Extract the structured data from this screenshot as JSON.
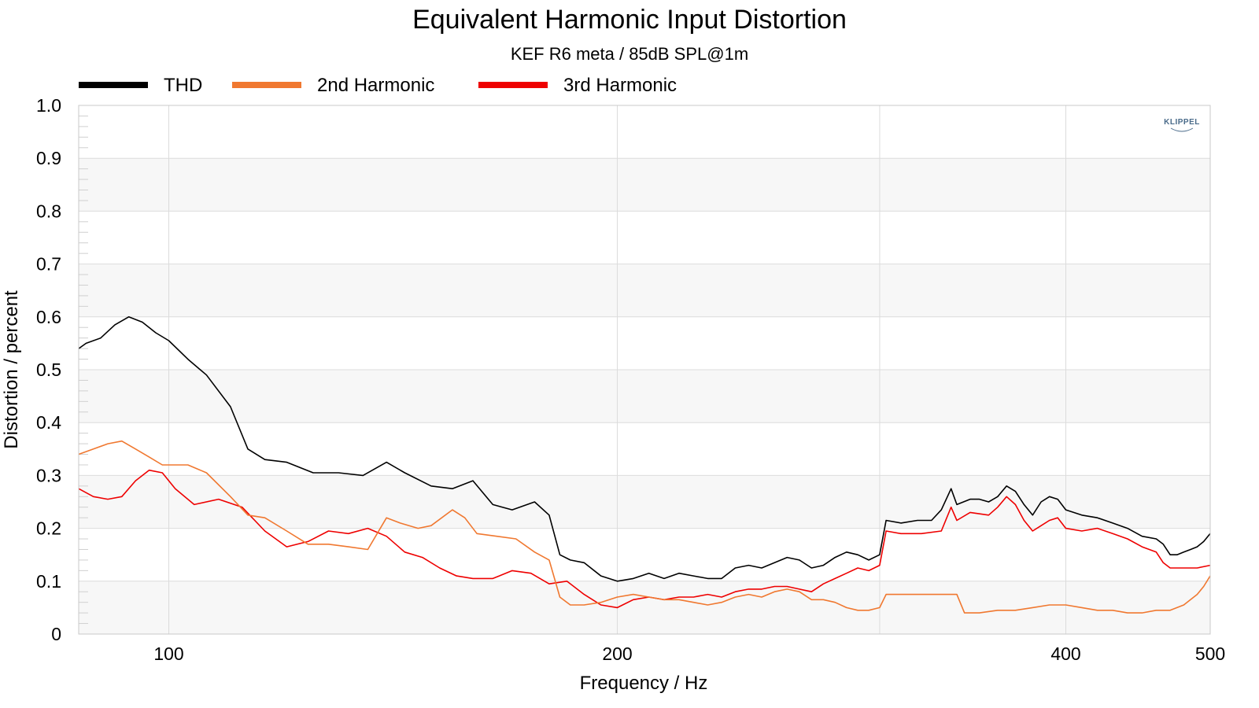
{
  "chart_data": {
    "type": "line",
    "title": "Equivalent Harmonic Input Distortion",
    "subtitle": "KEF R6 meta / 85dB SPL@1m",
    "xlabel": "Frequency / Hz",
    "ylabel": "Distortion / percent",
    "xscale": "log",
    "xlim": [
      87,
      500
    ],
    "ylim": [
      0,
      1.0
    ],
    "x_ticks": [
      {
        "value": 100,
        "label": "100"
      },
      {
        "value": 200,
        "label": "200"
      },
      {
        "value": 400,
        "label": "400"
      },
      {
        "value": 500,
        "label": "500"
      }
    ],
    "x_gridlines": [
      100,
      200,
      300,
      400
    ],
    "y_ticks": [
      {
        "value": 0,
        "label": "0"
      },
      {
        "value": 0.1,
        "label": "0.1"
      },
      {
        "value": 0.2,
        "label": "0.2"
      },
      {
        "value": 0.3,
        "label": "0.3"
      },
      {
        "value": 0.4,
        "label": "0.4"
      },
      {
        "value": 0.5,
        "label": "0.5"
      },
      {
        "value": 0.6,
        "label": "0.6"
      },
      {
        "value": 0.7,
        "label": "0.7"
      },
      {
        "value": 0.8,
        "label": "0.8"
      },
      {
        "value": 0.9,
        "label": "0.9"
      },
      {
        "value": 1.0,
        "label": "1.0"
      }
    ],
    "grid": true,
    "legend_position": "top-left",
    "logo": "KLIPPEL",
    "series": [
      {
        "name": "THD",
        "color": "#000000",
        "points": [
          [
            87,
            0.54
          ],
          [
            88,
            0.55
          ],
          [
            90,
            0.56
          ],
          [
            92,
            0.585
          ],
          [
            94,
            0.6
          ],
          [
            96,
            0.59
          ],
          [
            98,
            0.57
          ],
          [
            100,
            0.555
          ],
          [
            103,
            0.52
          ],
          [
            106,
            0.49
          ],
          [
            110,
            0.43
          ],
          [
            113,
            0.35
          ],
          [
            116,
            0.33
          ],
          [
            120,
            0.325
          ],
          [
            125,
            0.305
          ],
          [
            130,
            0.305
          ],
          [
            135,
            0.3
          ],
          [
            140,
            0.325
          ],
          [
            144,
            0.305
          ],
          [
            150,
            0.28
          ],
          [
            155,
            0.275
          ],
          [
            160,
            0.29
          ],
          [
            165,
            0.245
          ],
          [
            170,
            0.235
          ],
          [
            176,
            0.25
          ],
          [
            180,
            0.225
          ],
          [
            183,
            0.15
          ],
          [
            186,
            0.14
          ],
          [
            190,
            0.135
          ],
          [
            195,
            0.11
          ],
          [
            200,
            0.1
          ],
          [
            205,
            0.105
          ],
          [
            210,
            0.115
          ],
          [
            215,
            0.105
          ],
          [
            220,
            0.115
          ],
          [
            225,
            0.11
          ],
          [
            230,
            0.105
          ],
          [
            235,
            0.105
          ],
          [
            240,
            0.125
          ],
          [
            245,
            0.13
          ],
          [
            250,
            0.125
          ],
          [
            255,
            0.135
          ],
          [
            260,
            0.145
          ],
          [
            265,
            0.14
          ],
          [
            270,
            0.125
          ],
          [
            275,
            0.13
          ],
          [
            280,
            0.145
          ],
          [
            285,
            0.155
          ],
          [
            290,
            0.15
          ],
          [
            295,
            0.14
          ],
          [
            300,
            0.15
          ],
          [
            303,
            0.215
          ],
          [
            310,
            0.21
          ],
          [
            318,
            0.215
          ],
          [
            325,
            0.215
          ],
          [
            330,
            0.235
          ],
          [
            335,
            0.275
          ],
          [
            338,
            0.245
          ],
          [
            345,
            0.255
          ],
          [
            350,
            0.255
          ],
          [
            355,
            0.25
          ],
          [
            360,
            0.26
          ],
          [
            365,
            0.28
          ],
          [
            370,
            0.27
          ],
          [
            375,
            0.245
          ],
          [
            380,
            0.225
          ],
          [
            385,
            0.25
          ],
          [
            390,
            0.26
          ],
          [
            395,
            0.255
          ],
          [
            400,
            0.235
          ],
          [
            410,
            0.225
          ],
          [
            420,
            0.22
          ],
          [
            430,
            0.21
          ],
          [
            440,
            0.2
          ],
          [
            450,
            0.185
          ],
          [
            460,
            0.18
          ],
          [
            465,
            0.17
          ],
          [
            470,
            0.15
          ],
          [
            475,
            0.15
          ],
          [
            480,
            0.155
          ],
          [
            485,
            0.16
          ],
          [
            490,
            0.165
          ],
          [
            495,
            0.175
          ],
          [
            500,
            0.19
          ]
        ]
      },
      {
        "name": "2nd Harmonic",
        "color": "#f07830",
        "points": [
          [
            87,
            0.34
          ],
          [
            89,
            0.35
          ],
          [
            91,
            0.36
          ],
          [
            93,
            0.365
          ],
          [
            95,
            0.35
          ],
          [
            97,
            0.335
          ],
          [
            99,
            0.32
          ],
          [
            103,
            0.32
          ],
          [
            106,
            0.305
          ],
          [
            110,
            0.26
          ],
          [
            113,
            0.225
          ],
          [
            116,
            0.22
          ],
          [
            120,
            0.195
          ],
          [
            124,
            0.17
          ],
          [
            128,
            0.17
          ],
          [
            132,
            0.165
          ],
          [
            136,
            0.16
          ],
          [
            140,
            0.22
          ],
          [
            143,
            0.21
          ],
          [
            147,
            0.2
          ],
          [
            150,
            0.205
          ],
          [
            155,
            0.235
          ],
          [
            158,
            0.22
          ],
          [
            161,
            0.19
          ],
          [
            166,
            0.185
          ],
          [
            171,
            0.18
          ],
          [
            176,
            0.155
          ],
          [
            180,
            0.14
          ],
          [
            183,
            0.07
          ],
          [
            186,
            0.055
          ],
          [
            190,
            0.055
          ],
          [
            195,
            0.06
          ],
          [
            200,
            0.07
          ],
          [
            205,
            0.075
          ],
          [
            210,
            0.07
          ],
          [
            215,
            0.065
          ],
          [
            220,
            0.065
          ],
          [
            225,
            0.06
          ],
          [
            230,
            0.055
          ],
          [
            235,
            0.06
          ],
          [
            240,
            0.07
          ],
          [
            245,
            0.075
          ],
          [
            250,
            0.07
          ],
          [
            255,
            0.08
          ],
          [
            260,
            0.085
          ],
          [
            265,
            0.08
          ],
          [
            270,
            0.065
          ],
          [
            275,
            0.065
          ],
          [
            280,
            0.06
          ],
          [
            285,
            0.05
          ],
          [
            290,
            0.045
          ],
          [
            295,
            0.045
          ],
          [
            300,
            0.05
          ],
          [
            303,
            0.075
          ],
          [
            310,
            0.075
          ],
          [
            320,
            0.075
          ],
          [
            330,
            0.075
          ],
          [
            338,
            0.075
          ],
          [
            342,
            0.04
          ],
          [
            350,
            0.04
          ],
          [
            360,
            0.045
          ],
          [
            370,
            0.045
          ],
          [
            380,
            0.05
          ],
          [
            390,
            0.055
          ],
          [
            400,
            0.055
          ],
          [
            410,
            0.05
          ],
          [
            420,
            0.045
          ],
          [
            430,
            0.045
          ],
          [
            440,
            0.04
          ],
          [
            450,
            0.04
          ],
          [
            460,
            0.045
          ],
          [
            470,
            0.045
          ],
          [
            480,
            0.055
          ],
          [
            490,
            0.075
          ],
          [
            495,
            0.09
          ],
          [
            500,
            0.11
          ]
        ]
      },
      {
        "name": "3rd Harmonic",
        "color": "#ee0000",
        "points": [
          [
            87,
            0.275
          ],
          [
            89,
            0.26
          ],
          [
            91,
            0.255
          ],
          [
            93,
            0.26
          ],
          [
            95,
            0.29
          ],
          [
            97,
            0.31
          ],
          [
            99,
            0.305
          ],
          [
            101,
            0.275
          ],
          [
            104,
            0.245
          ],
          [
            108,
            0.255
          ],
          [
            112,
            0.24
          ],
          [
            116,
            0.195
          ],
          [
            120,
            0.165
          ],
          [
            124,
            0.175
          ],
          [
            128,
            0.195
          ],
          [
            132,
            0.19
          ],
          [
            136,
            0.2
          ],
          [
            140,
            0.185
          ],
          [
            144,
            0.155
          ],
          [
            148,
            0.145
          ],
          [
            152,
            0.125
          ],
          [
            156,
            0.11
          ],
          [
            160,
            0.105
          ],
          [
            165,
            0.105
          ],
          [
            170,
            0.12
          ],
          [
            175,
            0.115
          ],
          [
            180,
            0.095
          ],
          [
            185,
            0.1
          ],
          [
            190,
            0.075
          ],
          [
            195,
            0.055
          ],
          [
            200,
            0.05
          ],
          [
            205,
            0.065
          ],
          [
            210,
            0.07
          ],
          [
            215,
            0.065
          ],
          [
            220,
            0.07
          ],
          [
            225,
            0.07
          ],
          [
            230,
            0.075
          ],
          [
            235,
            0.07
          ],
          [
            240,
            0.08
          ],
          [
            245,
            0.085
          ],
          [
            250,
            0.085
          ],
          [
            255,
            0.09
          ],
          [
            260,
            0.09
          ],
          [
            265,
            0.085
          ],
          [
            270,
            0.08
          ],
          [
            275,
            0.095
          ],
          [
            280,
            0.105
          ],
          [
            285,
            0.115
          ],
          [
            290,
            0.125
          ],
          [
            295,
            0.12
          ],
          [
            300,
            0.13
          ],
          [
            303,
            0.195
          ],
          [
            310,
            0.19
          ],
          [
            320,
            0.19
          ],
          [
            330,
            0.195
          ],
          [
            335,
            0.24
          ],
          [
            338,
            0.215
          ],
          [
            345,
            0.23
          ],
          [
            355,
            0.225
          ],
          [
            360,
            0.24
          ],
          [
            365,
            0.26
          ],
          [
            370,
            0.245
          ],
          [
            375,
            0.215
          ],
          [
            380,
            0.195
          ],
          [
            385,
            0.205
          ],
          [
            390,
            0.215
          ],
          [
            395,
            0.22
          ],
          [
            400,
            0.2
          ],
          [
            410,
            0.195
          ],
          [
            420,
            0.2
          ],
          [
            430,
            0.19
          ],
          [
            440,
            0.18
          ],
          [
            450,
            0.165
          ],
          [
            460,
            0.155
          ],
          [
            465,
            0.135
          ],
          [
            470,
            0.125
          ],
          [
            480,
            0.125
          ],
          [
            490,
            0.125
          ],
          [
            500,
            0.13
          ]
        ]
      }
    ]
  }
}
